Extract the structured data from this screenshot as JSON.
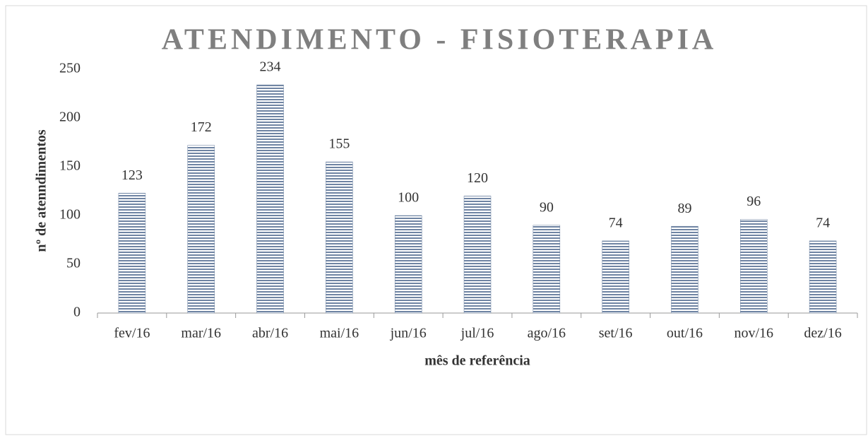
{
  "chart_data": {
    "type": "bar",
    "title": "ATENDIMENTO - FISIOTERAPIA",
    "x_label": "mês de referência",
    "y_label": "nº de atenndimentos",
    "categories": [
      "fev/16",
      "mar/16",
      "abr/16",
      "mai/16",
      "jun/16",
      "jul/16",
      "ago/16",
      "set/16",
      "out/16",
      "nov/16",
      "dez/16"
    ],
    "values": [
      123,
      172,
      234,
      155,
      100,
      120,
      90,
      74,
      89,
      96,
      74
    ],
    "color": "#6f84a3",
    "ylim": [
      0,
      250
    ],
    "yticks": [
      0,
      50,
      100,
      150,
      200,
      250
    ],
    "grid": false
  }
}
